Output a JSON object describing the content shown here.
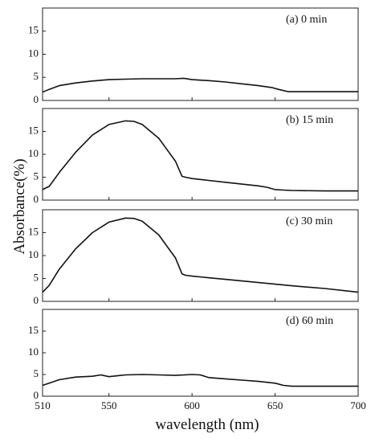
{
  "chart_data": {
    "type": "line",
    "ylabel": "Absorbance(%)",
    "xlabel": "wavelength (nm)",
    "xlim": [
      510,
      700
    ],
    "x_ticks": [
      510,
      550,
      600,
      650,
      700
    ],
    "grid": false,
    "legend": "none",
    "panels": [
      {
        "label": "(a) 0 min",
        "ylim": [
          0,
          20
        ],
        "y_ticks": [
          0,
          5,
          10,
          15
        ],
        "x": [
          510,
          514,
          520,
          530,
          540,
          550,
          560,
          570,
          580,
          590,
          595,
          600,
          610,
          620,
          630,
          640,
          648,
          652,
          658,
          665,
          680,
          700
        ],
        "y": [
          1.8,
          2.4,
          3.2,
          3.8,
          4.2,
          4.5,
          4.6,
          4.7,
          4.7,
          4.7,
          4.8,
          4.5,
          4.3,
          4.0,
          3.6,
          3.2,
          2.8,
          2.4,
          1.9,
          1.9,
          1.9,
          1.9
        ]
      },
      {
        "label": "(b) 15 min",
        "ylim": [
          0,
          20
        ],
        "y_ticks": [
          0,
          5,
          10,
          15
        ],
        "x": [
          510,
          514,
          520,
          530,
          540,
          550,
          560,
          565,
          570,
          580,
          585,
          590,
          594,
          596,
          600,
          610,
          620,
          630,
          640,
          645,
          650,
          655,
          660,
          680,
          700
        ],
        "y": [
          2.3,
          3.0,
          6.0,
          10.5,
          14.2,
          16.5,
          17.3,
          17.2,
          16.5,
          13.5,
          11.0,
          8.5,
          5.2,
          5.0,
          4.7,
          4.3,
          3.9,
          3.5,
          3.1,
          2.8,
          2.3,
          2.2,
          2.1,
          2.0,
          2.0
        ]
      },
      {
        "label": "(c) 30 min",
        "ylim": [
          0,
          20
        ],
        "y_ticks": [
          0,
          5,
          10,
          15
        ],
        "x": [
          510,
          514,
          520,
          530,
          540,
          550,
          560,
          565,
          570,
          580,
          585,
          590,
          594,
          596,
          600,
          620,
          640,
          660,
          680,
          700
        ],
        "y": [
          2.0,
          3.5,
          7.0,
          11.5,
          15.0,
          17.3,
          18.2,
          18.1,
          17.5,
          14.5,
          12.0,
          9.5,
          6.0,
          5.7,
          5.5,
          4.8,
          4.1,
          3.4,
          2.8,
          2.0
        ]
      },
      {
        "label": "(d) 60 min",
        "ylim": [
          0,
          20
        ],
        "y_ticks": [
          0,
          5,
          10,
          15
        ],
        "x": [
          510,
          514,
          520,
          530,
          540,
          545,
          550,
          555,
          560,
          570,
          580,
          590,
          600,
          605,
          610,
          620,
          630,
          640,
          650,
          655,
          660,
          680,
          700
        ],
        "y": [
          2.5,
          3.0,
          3.8,
          4.4,
          4.6,
          4.9,
          4.5,
          4.7,
          4.9,
          5.0,
          4.9,
          4.8,
          5.0,
          4.9,
          4.3,
          4.0,
          3.7,
          3.4,
          3.0,
          2.5,
          2.3,
          2.3,
          2.3
        ]
      }
    ]
  }
}
